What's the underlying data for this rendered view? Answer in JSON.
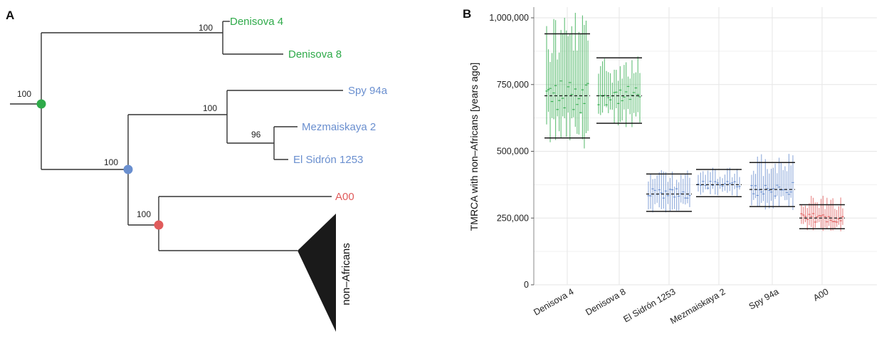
{
  "colors": {
    "denisova": "#2eaa49",
    "neanderthal": "#6a8fcf",
    "a00": "#e05b5b",
    "clade": "#1a1a1a",
    "branch": "#333333",
    "grid": "#e6e6e6"
  },
  "panel_a": {
    "letter": "A",
    "tree": {
      "root_support": "100",
      "nodes": {
        "denisova_split": "100",
        "mrca_ghost": "100",
        "neanderthal_split": "100",
        "mezmaiskaya_sidron": "96",
        "a00_split": "100"
      },
      "tips": [
        "Denisova 4",
        "Denisova 8",
        "Spy 94a",
        "Mezmaiskaya 2",
        "El Sidrón 1253",
        "A00"
      ],
      "collapsed_clade": "non–Africans"
    }
  },
  "chart_data": {
    "type": "scatter",
    "panel_letter": "B",
    "ylabel": "TMRCA with non–Africans [years ago]",
    "ylim": [
      0,
      1000000
    ],
    "yticks": [
      0,
      250000,
      500000,
      750000,
      1000000
    ],
    "ytick_labels": [
      "0",
      "250,000",
      "500,000",
      "750,000",
      "1,000,000"
    ],
    "categories": [
      "Denisova 4",
      "Denisova 8",
      "El Sidrón 1253",
      "Mezmaiskaya 2",
      "Spy 94a",
      "A00"
    ],
    "grid": true,
    "groups": [
      {
        "name": "Denisova 4",
        "color_key": "denisova",
        "mean": 708000,
        "lower": 550000,
        "upper": 940000,
        "spread_low": 510000,
        "spread_high": 1040000,
        "n": 24
      },
      {
        "name": "Denisova 8",
        "color_key": "denisova",
        "mean": 708000,
        "lower": 605000,
        "upper": 850000,
        "spread_low": 590000,
        "spread_high": 870000,
        "n": 22
      },
      {
        "name": "El Sidrón 1253",
        "color_key": "neanderthal",
        "mean": 340000,
        "lower": 275000,
        "upper": 415000,
        "spread_low": 265000,
        "spread_high": 430000,
        "n": 20
      },
      {
        "name": "Mezmaiskaya 2",
        "color_key": "neanderthal",
        "mean": 375000,
        "lower": 330000,
        "upper": 432000,
        "spread_low": 325000,
        "spread_high": 440000,
        "n": 18
      },
      {
        "name": "Spy 94a",
        "color_key": "neanderthal",
        "mean": 357000,
        "lower": 293000,
        "upper": 458000,
        "spread_low": 280000,
        "spread_high": 495000,
        "n": 22
      },
      {
        "name": "A00",
        "color_key": "a00",
        "mean": 250000,
        "lower": 210000,
        "upper": 300000,
        "spread_low": 200000,
        "spread_high": 335000,
        "n": 22
      }
    ]
  }
}
